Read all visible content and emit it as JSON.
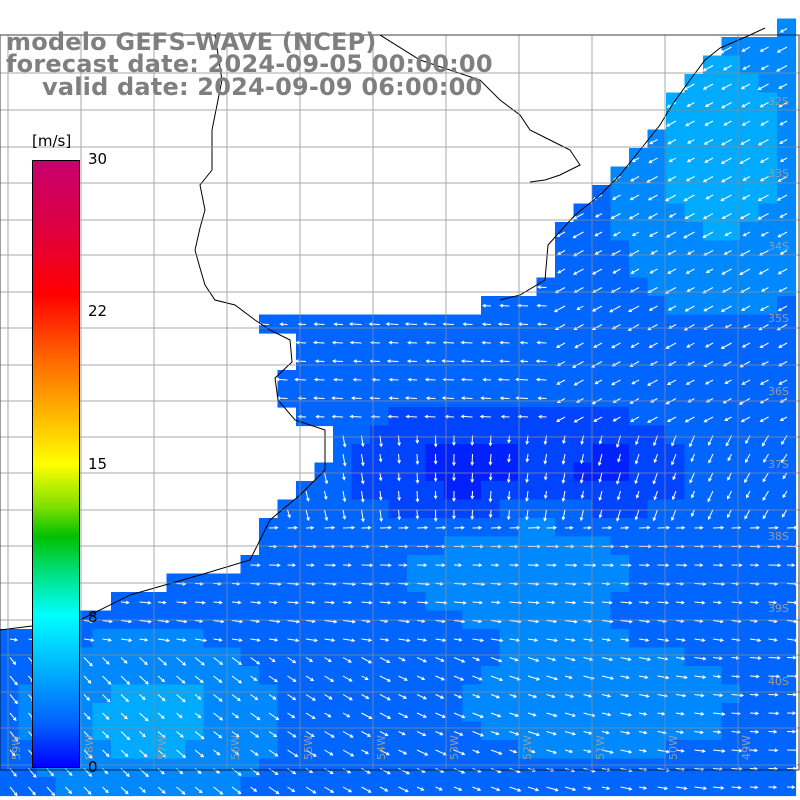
{
  "header": {
    "line1": "modelo GEFS-WAVE (NCEP)",
    "line2": "forecast date: 2024-09-05 00:00:00",
    "line3": "valid date: 2024-09-09 06:00:00"
  },
  "colorbar": {
    "unit": "[m/s]",
    "ticks": [
      "30",
      "22",
      "15",
      "8",
      "0"
    ],
    "colors": [
      "#c8006e",
      "#ff0000",
      "#ffc000",
      "#ffff00",
      "#00c000",
      "#00ffff",
      "#0060ff",
      "#0000ff"
    ]
  },
  "map": {
    "land_color": "#ffffff",
    "grid": true,
    "lat_labels": [
      "32S",
      "33S",
      "34S",
      "35S",
      "36S",
      "37S",
      "38S",
      "39S",
      "40S"
    ],
    "lon_labels": [
      "59W",
      "58W",
      "57W",
      "56W",
      "55W",
      "54W",
      "53W",
      "52W",
      "51W",
      "50W",
      "49W"
    ]
  }
}
